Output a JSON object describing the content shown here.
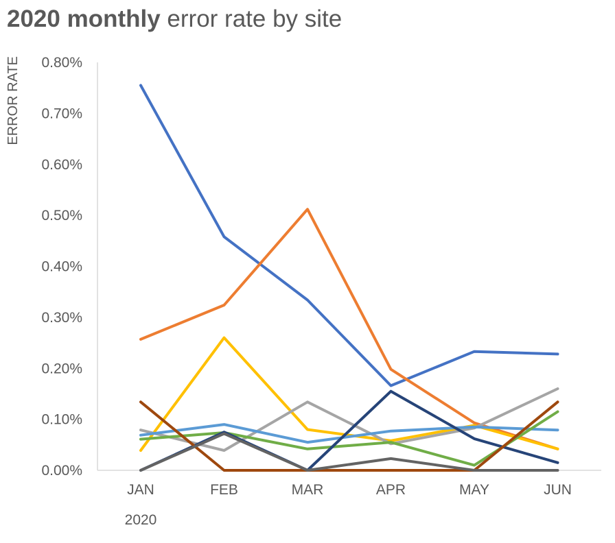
{
  "title": {
    "bold": "2020 monthly",
    "rest": " error rate by site"
  },
  "chart_data": {
    "type": "line",
    "title": "2020 monthly error rate by site",
    "ylabel": "ERROR RATE",
    "xlabel_secondary": "2020",
    "categories": [
      "JAN",
      "FEB",
      "MAR",
      "APR",
      "MAY",
      "JUN"
    ],
    "ylim": [
      0,
      0.8
    ],
    "yticks": [
      "0.00%",
      "0.10%",
      "0.20%",
      "0.30%",
      "0.40%",
      "0.50%",
      "0.60%",
      "0.70%",
      "0.80%"
    ],
    "grid": false,
    "legend": "none",
    "series": [
      {
        "color": "#4472C4",
        "values": [
          0.755,
          0.458,
          0.334,
          0.166,
          0.233,
          0.228
        ]
      },
      {
        "color": "#ED7D31",
        "values": [
          0.257,
          0.324,
          0.512,
          0.198,
          0.093,
          0.042
        ]
      },
      {
        "color": "#FFC000",
        "values": [
          0.039,
          0.26,
          0.08,
          0.058,
          0.088,
          0.042
        ]
      },
      {
        "color": "#A5A5A5",
        "values": [
          0.079,
          0.039,
          0.134,
          0.052,
          0.083,
          0.16
        ]
      },
      {
        "color": "#5B9BD5",
        "values": [
          0.069,
          0.09,
          0.055,
          0.077,
          0.085,
          0.079
        ]
      },
      {
        "color": "#70AD47",
        "values": [
          0.061,
          0.074,
          0.042,
          0.055,
          0.01,
          0.115
        ]
      },
      {
        "color": "#264478",
        "values": [
          0.0,
          0.075,
          0.0,
          0.155,
          0.062,
          0.015
        ]
      },
      {
        "color": "#9E480E",
        "values": [
          0.134,
          0.0,
          0.0,
          0.0,
          0.0,
          0.134
        ]
      },
      {
        "color": "#636363",
        "values": [
          0.0,
          0.072,
          0.0,
          0.023,
          0.0,
          0.0
        ]
      }
    ]
  }
}
